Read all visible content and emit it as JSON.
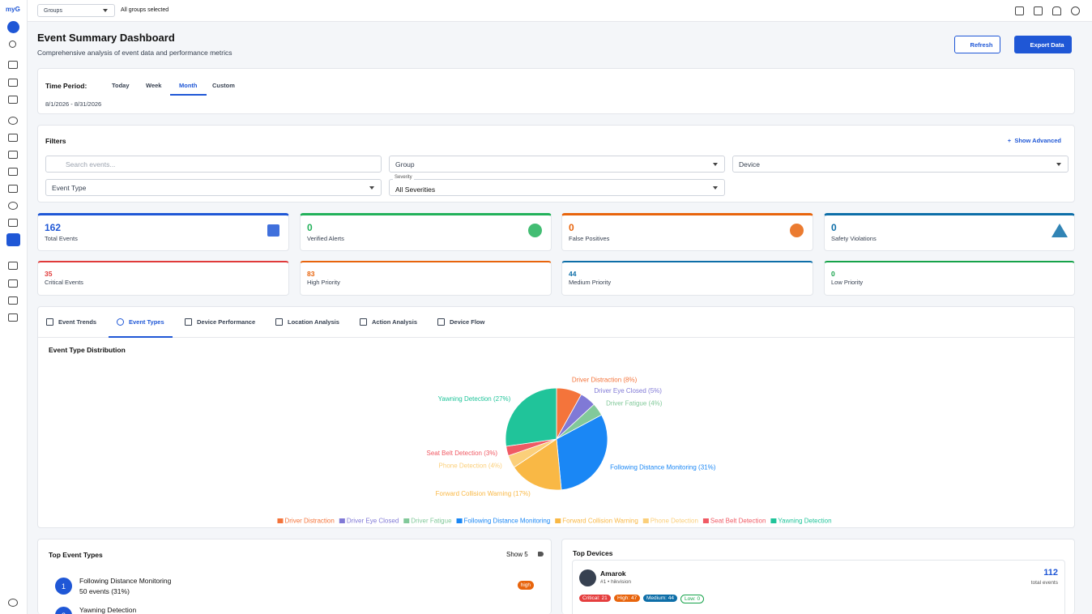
{
  "topbar": {
    "logo": "myG",
    "group_select": "Groups",
    "groups_summary": "All groups selected"
  },
  "header": {
    "title": "Event Summary Dashboard",
    "subtitle": "Comprehensive analysis of event data and performance metrics",
    "refresh": "Refresh",
    "export": "Export Data"
  },
  "time_period": {
    "label": "Time Period:",
    "options": [
      "Today",
      "Week",
      "Month",
      "Custom"
    ],
    "active": 2,
    "range": "8/1/2026 - 8/31/2026"
  },
  "filters": {
    "title": "Filters",
    "show_advanced": "Show Advanced",
    "search_placeholder": "Search events...",
    "group": "Group",
    "device": "Device",
    "event_type": "Event Type",
    "severity_label": "Severity",
    "severity_value": "All Severities"
  },
  "stats": [
    {
      "value": 162,
      "label": "Total Events",
      "color": "#1f57d6"
    },
    {
      "value": 0,
      "label": "Verified Alerts",
      "color": "#22b15a"
    },
    {
      "value": 0,
      "label": "False Positives",
      "color": "#e8640c"
    },
    {
      "value": 0,
      "label": "Safety Violations",
      "color": "#0d6ea8"
    }
  ],
  "priority": [
    {
      "value": 35,
      "label": "Critical Events",
      "color": "#e03a3a"
    },
    {
      "value": 83,
      "label": "High Priority",
      "color": "#e8640c"
    },
    {
      "value": 44,
      "label": "Medium Priority",
      "color": "#0d6ea8"
    },
    {
      "value": 0,
      "label": "Low Priority",
      "color": "#16a34a"
    }
  ],
  "tabs": {
    "items": [
      "Event Trends",
      "Event Types",
      "Device Performance",
      "Location Analysis",
      "Action Analysis",
      "Device Flow"
    ],
    "active": 1
  },
  "chart_data": {
    "type": "pie",
    "title": "Event Type Distribution",
    "categories": [
      "Driver Distraction",
      "Driver Eye Closed",
      "Driver Fatigue",
      "Following Distance Monitoring",
      "Forward Collision Warning",
      "Phone Detection",
      "Seat Belt Detection",
      "Yawning Detection"
    ],
    "values": [
      8,
      5,
      4,
      31,
      17,
      4,
      3,
      27
    ],
    "value_labels": [
      "Driver Distraction (8%)",
      "Driver Eye Closed (5%)",
      "Driver Fatigue (4%)",
      "Following Distance Monitoring (31%)",
      "Forward Collision Warning (17%)",
      "Phone Detection (4%)",
      "Seat Belt Detection (3%)",
      "Yawning Detection (27%)"
    ],
    "colors": [
      "#f4743b",
      "#8079d6",
      "#82c99a",
      "#1a87f5",
      "#f9b845",
      "#fbcf7a",
      "#f05a64",
      "#20c49a"
    ]
  },
  "top_event_types": {
    "title": "Top Event Types",
    "show": "Show 5",
    "items": [
      {
        "rank": 1,
        "name": "Following Distance Monitoring",
        "detail": "50 events (31%)",
        "severity": "high"
      },
      {
        "rank": 2,
        "name": "Yawning Detection"
      }
    ]
  },
  "top_devices": {
    "title": "Top Devices",
    "items": [
      {
        "name": "Amarok",
        "detail": "#1 • hikvision",
        "total": 112,
        "total_label": "total events",
        "badges": [
          "Critical: 21",
          "High: 47",
          "Medium: 44",
          "Low: 0"
        ]
      }
    ]
  }
}
